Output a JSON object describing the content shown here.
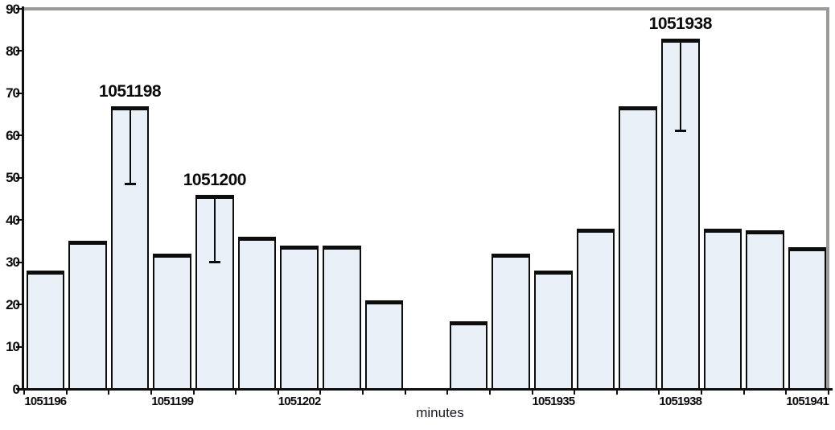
{
  "chart_data": {
    "type": "bar",
    "title": "",
    "xlabel": "minutes",
    "ylabel": "",
    "ylim": [
      0,
      90
    ],
    "yticks": [
      0,
      10,
      20,
      30,
      40,
      50,
      60,
      70,
      80,
      90
    ],
    "grid": false,
    "legend": false,
    "num_slots": 19,
    "gap_slots": [
      9
    ],
    "x_tick_labels": [
      {
        "slot": 0,
        "label": "1051196"
      },
      {
        "slot": 3,
        "label": "1051199"
      },
      {
        "slot": 6,
        "label": "1051202"
      },
      {
        "slot": 12,
        "label": "1051935"
      },
      {
        "slot": 15,
        "label": "1051938"
      },
      {
        "slot": 18,
        "label": "1051941"
      }
    ],
    "bars": [
      {
        "slot": 0,
        "minute": "1051196",
        "value": 28
      },
      {
        "slot": 1,
        "minute": "1051197",
        "value": 35
      },
      {
        "slot": 2,
        "minute": "1051198",
        "value": 67,
        "annotation": "1051198",
        "error_low": 48.5
      },
      {
        "slot": 3,
        "minute": "1051199",
        "value": 32
      },
      {
        "slot": 4,
        "minute": "1051200",
        "value": 46,
        "annotation": "1051200",
        "error_low": 30
      },
      {
        "slot": 5,
        "minute": "1051201",
        "value": 36
      },
      {
        "slot": 6,
        "minute": "1051202",
        "value": 34
      },
      {
        "slot": 7,
        "minute": "1051203",
        "value": 34
      },
      {
        "slot": 8,
        "minute": "1051204",
        "value": 21
      },
      {
        "slot": 10,
        "minute": "1051933",
        "value": 16
      },
      {
        "slot": 11,
        "minute": "1051934",
        "value": 32
      },
      {
        "slot": 12,
        "minute": "1051935",
        "value": 28
      },
      {
        "slot": 13,
        "minute": "1051936",
        "value": 38
      },
      {
        "slot": 14,
        "minute": "1051937",
        "value": 67
      },
      {
        "slot": 15,
        "minute": "1051938",
        "value": 83,
        "annotation": "1051938",
        "error_low": 61
      },
      {
        "slot": 16,
        "minute": "1051939",
        "value": 38
      },
      {
        "slot": 17,
        "minute": "1051940",
        "value": 37.5
      },
      {
        "slot": 18,
        "minute": "1051941",
        "value": 33.5
      }
    ],
    "colors": {
      "bar_fill": "#EAF0F8",
      "bar_border": "#0d0d0d",
      "axis": "#101010",
      "frame": "#9a9a96",
      "text": "#0c0c0c",
      "background": "#ffffff"
    }
  }
}
